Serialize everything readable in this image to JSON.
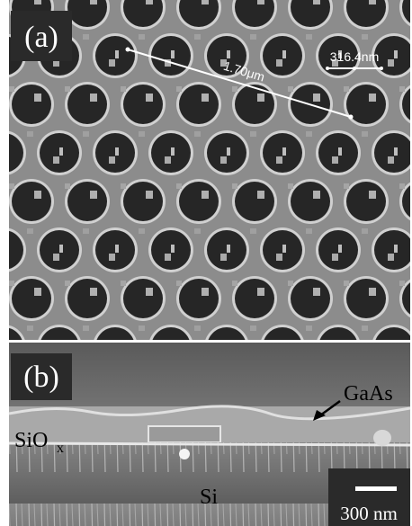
{
  "panel_a": {
    "label": "(a)",
    "measurements": [
      "1.70μm",
      "316.4nm"
    ]
  },
  "panel_b": {
    "label": "(b)",
    "layers": {
      "gaas": "GaAs",
      "sio": "SiO",
      "sio_sub": "x",
      "si": "Si"
    },
    "scale_bar": "300 nm"
  }
}
